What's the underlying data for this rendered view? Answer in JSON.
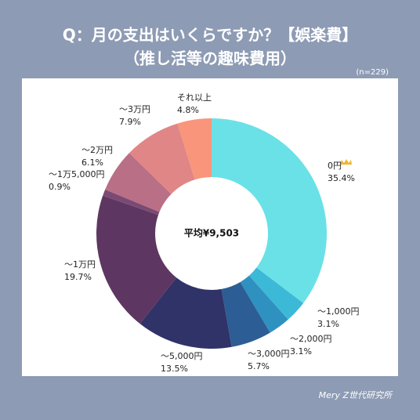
{
  "chart_data": {
    "type": "donut",
    "title": "Q：月の支出はいくらですか？【娯楽費】",
    "subtitle": "（推し活等の趣味費用）",
    "note": "(n=229)",
    "center_label": "平均¥9,503",
    "footer": "Mery Z世代研究所",
    "categories": [
      "0円",
      "～1,000円",
      "～2,000円",
      "～3,000円",
      "～5,000円",
      "～1万円",
      "～1万5,000円",
      "～2万円",
      "～3万円",
      "それ以上"
    ],
    "values": [
      35.4,
      3.1,
      3.1,
      5.7,
      13.5,
      19.7,
      0.9,
      6.1,
      7.9,
      4.8
    ],
    "value_labels": [
      "35.4%",
      "3.1%",
      "3.1%",
      "5.7%",
      "13.5%",
      "19.7%",
      "0.9%",
      "6.1%",
      "7.9%",
      "4.8%"
    ],
    "colors": [
      "#6ae1e7",
      "#3db9d8",
      "#2f91c0",
      "#2d5d95",
      "#2f3368",
      "#5e3662",
      "#7b4a73",
      "#b96f85",
      "#e08686",
      "#f8957b"
    ]
  }
}
